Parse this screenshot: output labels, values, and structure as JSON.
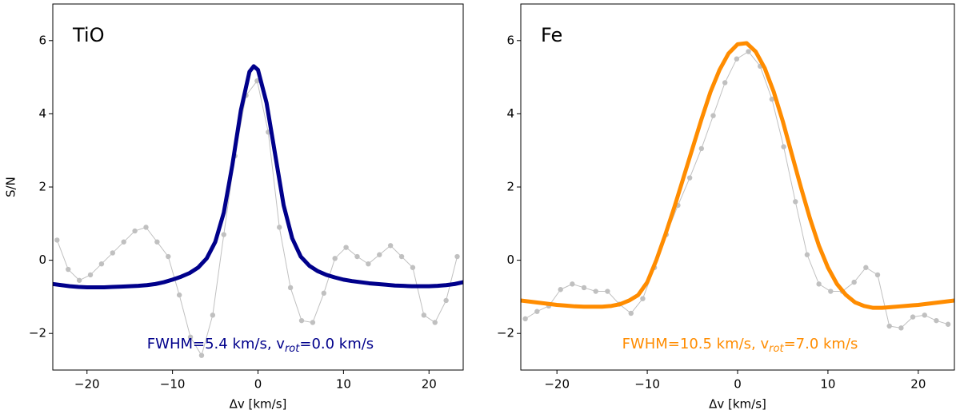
{
  "chart_data": [
    {
      "type": "line",
      "label": "TiO",
      "ylabel": "S/N",
      "xlabel": "Δv [km/s]",
      "annotation": [
        "FWHM=5.4 km/s, v",
        "rot",
        "=0.0 km/s"
      ],
      "annotation_color": "#00008b",
      "xlim": [
        -24,
        24
      ],
      "ylim": [
        -3,
        7
      ],
      "xticks": [
        {
          "value": -20,
          "label": "−20"
        },
        {
          "value": -10,
          "label": "−10"
        },
        0,
        10,
        20
      ],
      "yticks": [
        {
          "value": -2,
          "label": "−2"
        },
        0,
        2,
        4,
        6
      ],
      "series": [
        {
          "color": "#c0c0c0",
          "marker": true,
          "linewidth": 1,
          "x": [
            -23.5,
            -22.2,
            -20.9,
            -19.6,
            -18.3,
            -17,
            -15.7,
            -14.4,
            -13.1,
            -11.8,
            -10.5,
            -9.2,
            -7.9,
            -6.6,
            -5.3,
            -4,
            -2.7,
            -1.4,
            -0.1,
            1.2,
            2.5,
            3.8,
            5.1,
            6.4,
            7.7,
            9,
            10.3,
            11.6,
            12.9,
            14.2,
            15.5,
            16.8,
            18.1,
            19.4,
            20.7,
            22,
            23.3
          ],
          "values": [
            0.55,
            -0.25,
            -0.55,
            -0.4,
            -0.1,
            0.2,
            0.5,
            0.8,
            0.9,
            0.5,
            0.1,
            -0.95,
            -2.1,
            -2.6,
            -1.5,
            0.7,
            2.85,
            4.5,
            4.9,
            3.5,
            0.9,
            -0.75,
            -1.65,
            -1.7,
            -0.9,
            0.05,
            0.35,
            0.1,
            -0.1,
            0.15,
            0.4,
            0.1,
            -0.2,
            -1.5,
            -1.7,
            -1.1,
            0.1
          ]
        },
        {
          "color": "#00008b",
          "marker": false,
          "linewidth": 5,
          "x": [
            -24,
            -23,
            -22,
            -21,
            -20,
            -19,
            -18,
            -17,
            -16,
            -15,
            -14,
            -13,
            -12,
            -11,
            -10,
            -9,
            -8,
            -7,
            -6,
            -5,
            -4,
            -3,
            -2,
            -1,
            -0.5,
            0,
            1,
            2,
            3,
            4,
            5,
            6,
            7,
            8,
            9,
            10,
            11,
            12,
            13,
            14,
            15,
            16,
            17,
            18,
            19,
            20,
            21,
            22,
            23,
            24
          ],
          "values": [
            -0.65,
            -0.68,
            -0.71,
            -0.73,
            -0.74,
            -0.74,
            -0.74,
            -0.73,
            -0.72,
            -0.71,
            -0.7,
            -0.68,
            -0.65,
            -0.6,
            -0.53,
            -0.45,
            -0.35,
            -0.2,
            0.05,
            0.5,
            1.3,
            2.6,
            4.1,
            5.15,
            5.3,
            5.2,
            4.3,
            2.9,
            1.5,
            0.6,
            0.1,
            -0.15,
            -0.3,
            -0.4,
            -0.47,
            -0.53,
            -0.57,
            -0.6,
            -0.63,
            -0.65,
            -0.67,
            -0.69,
            -0.7,
            -0.71,
            -0.71,
            -0.71,
            -0.7,
            -0.68,
            -0.65,
            -0.6
          ]
        }
      ]
    },
    {
      "type": "line",
      "label": "Fe",
      "xlabel": "Δv [km/s]",
      "annotation": [
        "FWHM=10.5 km/s, v",
        "rot",
        "=7.0 km/s"
      ],
      "annotation_color": "#ff8c00",
      "xlim": [
        -24,
        24
      ],
      "ylim": [
        -3,
        7
      ],
      "xticks": [
        {
          "value": -20,
          "label": "−20"
        },
        {
          "value": -10,
          "label": "−10"
        },
        0,
        10,
        20
      ],
      "yticks": [
        {
          "value": -2,
          "label": "−2"
        },
        0,
        2,
        4,
        6
      ],
      "series": [
        {
          "color": "#c0c0c0",
          "marker": true,
          "linewidth": 1,
          "x": [
            -23.5,
            -22.2,
            -20.9,
            -19.6,
            -18.3,
            -17,
            -15.7,
            -14.4,
            -13.1,
            -11.8,
            -10.5,
            -9.2,
            -7.9,
            -6.6,
            -5.3,
            -4,
            -2.7,
            -1.4,
            -0.1,
            1.2,
            2.5,
            3.8,
            5.1,
            6.4,
            7.7,
            9,
            10.3,
            11.6,
            12.9,
            14.2,
            15.5,
            16.8,
            18.1,
            19.4,
            20.7,
            22,
            23.3
          ],
          "values": [
            -1.6,
            -1.4,
            -1.25,
            -0.8,
            -0.65,
            -0.75,
            -0.85,
            -0.85,
            -1.2,
            -1.45,
            -1.05,
            -0.2,
            0.7,
            1.5,
            2.25,
            3.05,
            3.95,
            4.85,
            5.5,
            5.7,
            5.3,
            4.4,
            3.1,
            1.6,
            0.15,
            -0.65,
            -0.85,
            -0.85,
            -0.6,
            -0.2,
            -0.4,
            -1.8,
            -1.85,
            -1.55,
            -1.5,
            -1.65,
            -1.75
          ]
        },
        {
          "color": "#ff8c00",
          "marker": false,
          "linewidth": 5,
          "x": [
            -24,
            -23,
            -22,
            -21,
            -20,
            -19,
            -18,
            -17,
            -16,
            -15,
            -14,
            -13,
            -12,
            -11,
            -10,
            -9,
            -8,
            -7,
            -6,
            -5,
            -4,
            -3,
            -2,
            -1,
            0,
            1,
            2,
            3,
            4,
            5,
            6,
            7,
            8,
            9,
            10,
            11,
            12,
            13,
            14,
            15,
            16,
            17,
            18,
            19,
            20,
            21,
            22,
            23,
            24
          ],
          "values": [
            -1.1,
            -1.13,
            -1.16,
            -1.19,
            -1.22,
            -1.24,
            -1.26,
            -1.27,
            -1.27,
            -1.27,
            -1.25,
            -1.2,
            -1.1,
            -0.95,
            -0.6,
            0.0,
            0.7,
            1.45,
            2.25,
            3.05,
            3.85,
            4.6,
            5.2,
            5.65,
            5.9,
            5.93,
            5.7,
            5.25,
            4.6,
            3.8,
            2.9,
            2.0,
            1.15,
            0.4,
            -0.2,
            -0.65,
            -0.95,
            -1.15,
            -1.25,
            -1.3,
            -1.3,
            -1.28,
            -1.26,
            -1.24,
            -1.22,
            -1.19,
            -1.16,
            -1.13,
            -1.1
          ]
        }
      ]
    }
  ]
}
